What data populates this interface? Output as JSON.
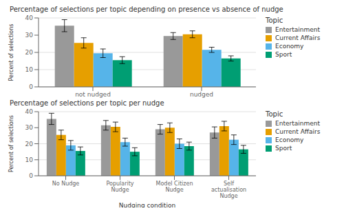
{
  "chart_data": [
    {
      "type": "bar",
      "title": "Percentage of selections per topic depending on presence vs absence of nudge",
      "ylabel": "Percent of selections",
      "categories": [
        "not nudged",
        "nudged"
      ],
      "series": [
        {
          "name": "Entertainment",
          "color": "#999999",
          "values": [
            35.5,
            29.5
          ],
          "errors": [
            3.5,
            2.0
          ]
        },
        {
          "name": "Current Affairs",
          "color": "#E69F00",
          "values": [
            25.5,
            30.5
          ],
          "errors": [
            3.0,
            2.0
          ]
        },
        {
          "name": "Economy",
          "color": "#56B4E9",
          "values": [
            19.5,
            21.5
          ],
          "errors": [
            2.5,
            1.5
          ]
        },
        {
          "name": "Sport",
          "color": "#009E73",
          "values": [
            15.5,
            16.5
          ],
          "errors": [
            2.0,
            1.5
          ]
        }
      ],
      "ylim": [
        0,
        40
      ],
      "yticks": [
        0,
        10,
        20,
        30,
        40
      ],
      "grid": true,
      "legend": "right",
      "legend_title": "Topic"
    },
    {
      "type": "bar",
      "title": "Percentage of selections per topic per nudge",
      "xlabel": "Nudging condition",
      "ylabel": "Percent of selections",
      "categories": [
        "No Nudge",
        "Popularity Nudge",
        "Model Citizen Nudge",
        "Self actualisation Nudge"
      ],
      "series": [
        {
          "name": "Entertainment",
          "color": "#999999",
          "values": [
            35.5,
            31.5,
            29.0,
            27.0
          ],
          "errors": [
            3.5,
            3.0,
            3.0,
            3.5
          ]
        },
        {
          "name": "Current Affairs",
          "color": "#E69F00",
          "values": [
            25.5,
            30.5,
            30.0,
            31.0
          ],
          "errors": [
            3.0,
            3.0,
            3.0,
            3.0
          ]
        },
        {
          "name": "Economy",
          "color": "#56B4E9",
          "values": [
            19.0,
            21.0,
            20.0,
            22.5
          ],
          "errors": [
            3.0,
            2.5,
            3.0,
            3.0
          ]
        },
        {
          "name": "Sport",
          "color": "#009E73",
          "values": [
            15.5,
            15.0,
            18.5,
            16.5
          ],
          "errors": [
            2.5,
            2.5,
            2.5,
            2.5
          ]
        }
      ],
      "ylim": [
        0,
        40
      ],
      "yticks": [
        0,
        10,
        20,
        30,
        40
      ],
      "grid": true,
      "legend": "right",
      "legend_title": "Topic"
    }
  ]
}
